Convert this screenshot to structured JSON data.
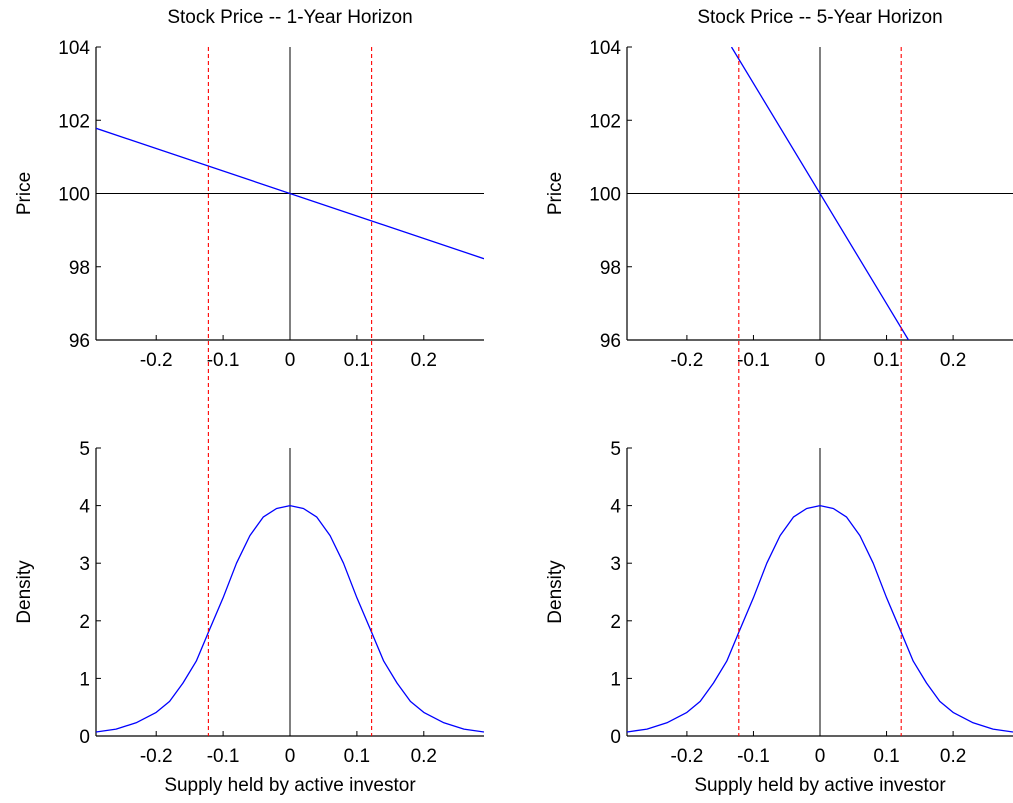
{
  "chart_data": [
    {
      "type": "line",
      "title": "Stock Price -- 1-Year Horizon",
      "xlabel": "",
      "ylabel": "Price",
      "xlim": [
        -0.29,
        0.29
      ],
      "ylim": [
        96,
        104
      ],
      "xticks": [
        -0.2,
        -0.1,
        0,
        0.1,
        0.2
      ],
      "xtick_labels": [
        "-0.2",
        "-0.1",
        "0",
        "0.1",
        "0.2"
      ],
      "yticks": [
        96,
        98,
        100,
        102,
        104
      ],
      "ytick_labels": [
        "96",
        "98",
        "100",
        "102",
        "104"
      ],
      "reference_lines": {
        "vertical_x": 0,
        "horizontal_y": 100,
        "color": "#000000"
      },
      "dashed_lines_x": [
        -0.122,
        0.122
      ],
      "dashed_color": "#ff0000",
      "series": [
        {
          "color": "#0000ff",
          "x": [
            -0.29,
            0.29
          ],
          "y": [
            101.78,
            98.22
          ]
        }
      ]
    },
    {
      "type": "line",
      "title": "Stock Price -- 5-Year Horizon",
      "xlabel": "",
      "ylabel": "Price",
      "xlim": [
        -0.29,
        0.29
      ],
      "ylim": [
        96,
        104
      ],
      "xticks": [
        -0.2,
        -0.1,
        0,
        0.1,
        0.2
      ],
      "xtick_labels": [
        "-0.2",
        "-0.1",
        "0",
        "0.1",
        "0.2"
      ],
      "yticks": [
        96,
        98,
        100,
        102,
        104
      ],
      "ytick_labels": [
        "96",
        "98",
        "100",
        "102",
        "104"
      ],
      "reference_lines": {
        "vertical_x": 0,
        "horizontal_y": 100,
        "color": "#000000"
      },
      "dashed_lines_x": [
        -0.122,
        0.122
      ],
      "dashed_color": "#ff0000",
      "series": [
        {
          "color": "#0000ff",
          "x": [
            -0.133,
            0.133
          ],
          "y": [
            104,
            96
          ]
        }
      ]
    },
    {
      "type": "line",
      "title": "",
      "xlabel": "Supply held by active investor",
      "ylabel": "Density",
      "xlim": [
        -0.29,
        0.29
      ],
      "ylim": [
        0,
        5
      ],
      "xticks": [
        -0.2,
        -0.1,
        0,
        0.1,
        0.2
      ],
      "xtick_labels": [
        "-0.2",
        "-0.1",
        "0",
        "0.1",
        "0.2"
      ],
      "yticks": [
        0,
        1,
        2,
        3,
        4,
        5
      ],
      "ytick_labels": [
        "0",
        "1",
        "2",
        "3",
        "4",
        "5"
      ],
      "reference_lines": {
        "vertical_x": 0,
        "color": "#000000"
      },
      "dashed_lines_x": [
        -0.122,
        0.122
      ],
      "dashed_color": "#ff0000",
      "series": [
        {
          "color": "#0000ff",
          "x": [
            -0.29,
            -0.26,
            -0.23,
            -0.2,
            -0.18,
            -0.16,
            -0.14,
            -0.122,
            -0.1,
            -0.08,
            -0.06,
            -0.04,
            -0.02,
            0,
            0.02,
            0.04,
            0.06,
            0.08,
            0.1,
            0.122,
            0.14,
            0.16,
            0.18,
            0.2,
            0.23,
            0.26,
            0.29
          ],
          "y": [
            0.07,
            0.12,
            0.23,
            0.41,
            0.6,
            0.92,
            1.3,
            1.8,
            2.4,
            3.0,
            3.48,
            3.8,
            3.95,
            4.0,
            3.95,
            3.8,
            3.48,
            3.0,
            2.4,
            1.8,
            1.3,
            0.92,
            0.6,
            0.41,
            0.23,
            0.12,
            0.07
          ]
        }
      ]
    },
    {
      "type": "line",
      "title": "",
      "xlabel": "Supply held by active investor",
      "ylabel": "Density",
      "xlim": [
        -0.29,
        0.29
      ],
      "ylim": [
        0,
        5
      ],
      "xticks": [
        -0.2,
        -0.1,
        0,
        0.1,
        0.2
      ],
      "xtick_labels": [
        "-0.2",
        "-0.1",
        "0",
        "0.1",
        "0.2"
      ],
      "yticks": [
        0,
        1,
        2,
        3,
        4,
        5
      ],
      "ytick_labels": [
        "0",
        "1",
        "2",
        "3",
        "4",
        "5"
      ],
      "reference_lines": {
        "vertical_x": 0,
        "color": "#000000"
      },
      "dashed_lines_x": [
        -0.122,
        0.122
      ],
      "dashed_color": "#ff0000",
      "series": [
        {
          "color": "#0000ff",
          "x": [
            -0.29,
            -0.26,
            -0.23,
            -0.2,
            -0.18,
            -0.16,
            -0.14,
            -0.122,
            -0.1,
            -0.08,
            -0.06,
            -0.04,
            -0.02,
            0,
            0.02,
            0.04,
            0.06,
            0.08,
            0.1,
            0.122,
            0.14,
            0.16,
            0.18,
            0.2,
            0.23,
            0.26,
            0.29
          ],
          "y": [
            0.07,
            0.12,
            0.23,
            0.41,
            0.6,
            0.92,
            1.3,
            1.8,
            2.4,
            3.0,
            3.48,
            3.8,
            3.95,
            4.0,
            3.95,
            3.8,
            3.48,
            3.0,
            2.4,
            1.8,
            1.3,
            0.92,
            0.6,
            0.41,
            0.23,
            0.12,
            0.07
          ]
        }
      ]
    }
  ]
}
